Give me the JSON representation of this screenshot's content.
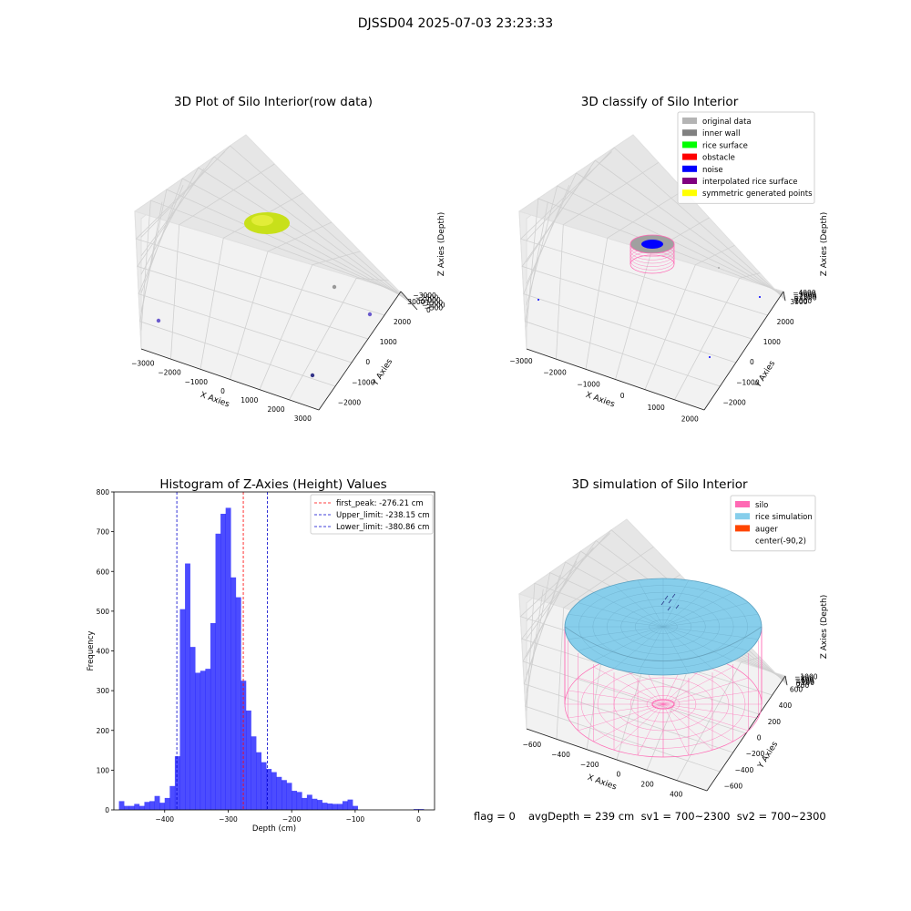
{
  "suptitle": "DJSSD04 2025-07-03 23:23:33",
  "panels": {
    "raw": {
      "title": "3D Plot of Silo Interior(row data)",
      "xlabel": "X Axies",
      "ylabel": "Y Axies",
      "zlabel": "Z Axies (Depth)",
      "xticks": [
        "−3000",
        "−2000",
        "−1000",
        "0",
        "1000",
        "2000",
        "3000"
      ],
      "yticks": [
        "−2000",
        "−1000",
        "0",
        "1000",
        "2000",
        "3000"
      ],
      "zticks": [
        "0",
        "−500",
        "−1000",
        "−1500",
        "−2000",
        "−2500",
        "−3000"
      ]
    },
    "classify": {
      "title": "3D classify of Silo Interior",
      "xlabel": "X Axies",
      "ylabel": "Y Axies",
      "zlabel": "Z Axies (Depth)",
      "xticks": [
        "−3000",
        "−2000",
        "−1000",
        "0",
        "1000",
        "2000"
      ],
      "yticks": [
        "−2000",
        "−1000",
        "0",
        "1000",
        "2000",
        "3000"
      ],
      "zticks": [
        "1000",
        "0",
        "−1000",
        "−2000",
        "−3000",
        "−4000"
      ],
      "legend": [
        {
          "label": "original data",
          "color": "#b4b4b4"
        },
        {
          "label": "inner wall",
          "color": "#808080"
        },
        {
          "label": "rice surface",
          "color": "#00ff00"
        },
        {
          "label": "obstacle",
          "color": "#ff0000"
        },
        {
          "label": "noise",
          "color": "#0000ff"
        },
        {
          "label": "interpolated rice surface",
          "color": "#800080"
        },
        {
          "label": "symmetric generated points",
          "color": "#ffff00"
        }
      ]
    },
    "simulation": {
      "title": "3D simulation of Silo Interior",
      "xlabel": "X Axies",
      "ylabel": "Y Axies",
      "zlabel": "Z Axies (Depth)",
      "xticks": [
        "−600",
        "−400",
        "−200",
        "0",
        "200",
        "400"
      ],
      "yticks": [
        "−600",
        "−400",
        "−200",
        "0",
        "200",
        "400",
        "600"
      ],
      "zticks": [
        "200",
        "0",
        "−200",
        "−400",
        "−600",
        "−800",
        "−1000"
      ],
      "legend": [
        {
          "label": "silo",
          "color": "#ff69b4"
        },
        {
          "label": "rice simulation",
          "color": "#87ceeb"
        },
        {
          "label": "auger",
          "color": "#ff4500"
        },
        {
          "label": "center(-90,2)",
          "color": ""
        }
      ]
    }
  },
  "chart_data": {
    "type": "bar",
    "title": "Histogram of Z-Axies (Height) Values",
    "xlabel": "Depth (cm)",
    "ylabel": "Frequency",
    "xlim": [
      -480,
      25
    ],
    "ylim": [
      0,
      800
    ],
    "xticks": [
      -400,
      -300,
      -200,
      -100,
      0
    ],
    "yticks": [
      0,
      100,
      200,
      300,
      400,
      500,
      600,
      700,
      800
    ],
    "bin_width": 8,
    "bin_starts": [
      -472,
      -464,
      -456,
      -448,
      -440,
      -432,
      -424,
      -416,
      -408,
      -400,
      -392,
      -384,
      -376,
      -368,
      -360,
      -352,
      -344,
      -336,
      -328,
      -320,
      -312,
      -304,
      -296,
      -288,
      -280,
      -272,
      -264,
      -256,
      -248,
      -240,
      -232,
      -224,
      -216,
      -208,
      -200,
      -192,
      -184,
      -176,
      -168,
      -160,
      -152,
      -144,
      -136,
      -128,
      -120,
      -112,
      -104,
      -96,
      -88,
      -80,
      -72,
      -64,
      -56,
      -48,
      -40,
      -32,
      -24,
      -16,
      -8,
      0
    ],
    "values": [
      22,
      10,
      10,
      15,
      10,
      20,
      22,
      35,
      18,
      30,
      60,
      135,
      505,
      620,
      410,
      345,
      350,
      355,
      470,
      695,
      745,
      760,
      585,
      535,
      325,
      250,
      185,
      145,
      120,
      103,
      95,
      83,
      75,
      68,
      48,
      45,
      30,
      38,
      28,
      25,
      18,
      16,
      15,
      15,
      22,
      26,
      10,
      0,
      0,
      0,
      0,
      0,
      0,
      0,
      0,
      0,
      0,
      0,
      2,
      2
    ],
    "bar_color": "#0000ff",
    "lines": [
      {
        "label": "first_peak: -276.21 cm",
        "x": -276.21,
        "color": "#ff0000"
      },
      {
        "label": "Upper_limit: -238.15 cm",
        "x": -238.15,
        "color": "#0000cd"
      },
      {
        "label": "Lower_limit: -380.86 cm",
        "x": -380.86,
        "color": "#0000cd"
      }
    ],
    "legend_position": "upper right"
  },
  "footer": {
    "flag": "flag = 0",
    "stats": "avgDepth = 239 cm  sv1 = 700~2300  sv2 = 700~2300"
  }
}
